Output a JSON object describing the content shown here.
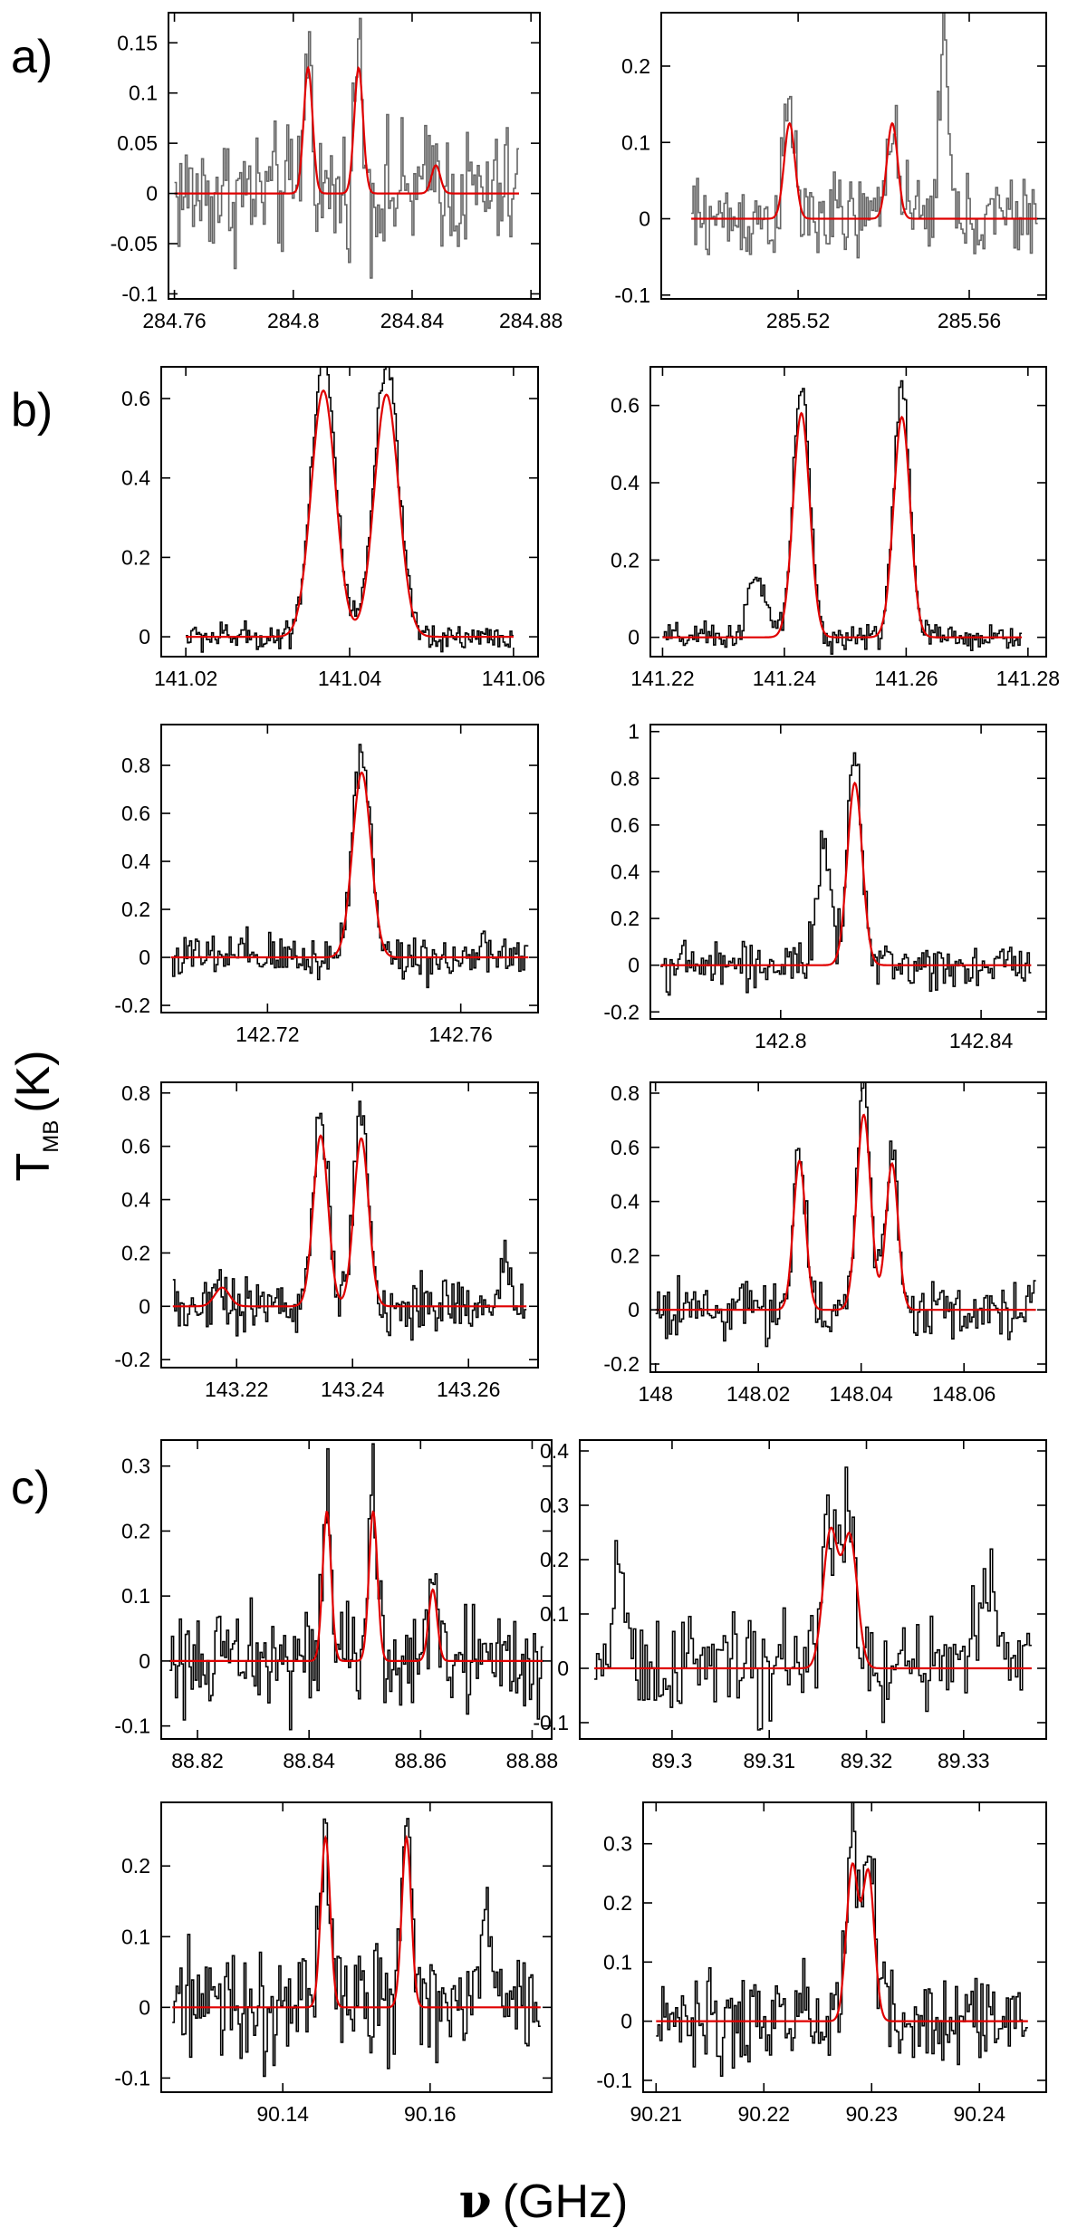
{
  "figure": {
    "panel_letters": [
      "a)",
      "b)",
      "c)"
    ],
    "ylabel_main": "T",
    "ylabel_sub": "MB",
    "ylabel_unit": "(K)",
    "xlabel_symbol": "ν",
    "xlabel_unit": "(GHz)"
  },
  "chart_data": [
    {
      "type": "line",
      "group": "a",
      "position": "left",
      "xlim": [
        284.758,
        284.883
      ],
      "ylim": [
        -0.105,
        0.18
      ],
      "xticks": [
        284.76,
        284.8,
        284.84,
        284.88
      ],
      "xtick_labels": [
        "284.76",
        "284.8",
        "284.84",
        "284.88"
      ],
      "yticks": [
        -0.1,
        -0.05,
        0,
        0.05,
        0.1,
        0.15
      ],
      "ytick_labels": [
        "-0.1",
        "-0.05",
        "0",
        "0.05",
        "0.1",
        "0.15"
      ],
      "data_xrange": [
        284.76,
        284.876
      ],
      "noise": 0.032,
      "observed_color": "gray",
      "fit_components": [
        {
          "center": 284.805,
          "amplitude": 0.125,
          "fwhm": 0.0035
        },
        {
          "center": 284.822,
          "amplitude": 0.125,
          "fwhm": 0.0035
        },
        {
          "center": 284.848,
          "amplitude": 0.028,
          "fwhm": 0.0035
        }
      ],
      "extra_observed": [],
      "series": [
        {
          "name": "observed"
        },
        {
          "name": "fit"
        }
      ]
    },
    {
      "type": "line",
      "group": "a",
      "position": "right",
      "xlim": [
        285.488,
        285.578
      ],
      "ylim": [
        -0.105,
        0.27
      ],
      "xticks": [
        285.52,
        285.56
      ],
      "xtick_labels": [
        "285.52",
        "285.56"
      ],
      "yticks": [
        -0.1,
        0,
        0.1,
        0.2
      ],
      "ytick_labels": [
        "-0.1",
        "0",
        "0.1",
        "0.2"
      ],
      "data_xrange": [
        285.495,
        285.576
      ],
      "noise": 0.028,
      "observed_color": "gray",
      "fit_components": [
        {
          "center": 285.518,
          "amplitude": 0.125,
          "fwhm": 0.003
        },
        {
          "center": 285.542,
          "amplitude": 0.125,
          "fwhm": 0.003
        }
      ],
      "extra_observed": [
        {
          "center": 285.554,
          "amplitude": 0.24,
          "fwhm": 0.0025
        }
      ],
      "series": [
        {
          "name": "observed"
        },
        {
          "name": "fit"
        }
      ]
    },
    {
      "type": "line",
      "group": "b",
      "position": "left",
      "xlim": [
        141.017,
        141.063
      ],
      "ylim": [
        -0.05,
        0.68
      ],
      "xticks": [
        141.02,
        141.04,
        141.06
      ],
      "xtick_labels": [
        "141.02",
        "141.04",
        "141.06"
      ],
      "yticks": [
        0,
        0.2,
        0.4,
        0.6
      ],
      "ytick_labels": [
        "0",
        "0.2",
        "0.4",
        "0.6"
      ],
      "data_xrange": [
        141.02,
        141.06
      ],
      "noise": 0.018,
      "observed_color": "black",
      "fit_components": [
        {
          "center": 141.0368,
          "amplitude": 0.62,
          "fwhm": 0.0035
        },
        {
          "center": 141.0445,
          "amplitude": 0.61,
          "fwhm": 0.0035
        }
      ],
      "extra_observed": [],
      "series": [
        {
          "name": "observed"
        },
        {
          "name": "fit"
        }
      ]
    },
    {
      "type": "line",
      "group": "b",
      "position": "right",
      "xlim": [
        141.218,
        141.283
      ],
      "ylim": [
        -0.05,
        0.7
      ],
      "xticks": [
        141.22,
        141.24,
        141.26,
        141.28
      ],
      "xtick_labels": [
        "141.22",
        "141.24",
        "141.26",
        "141.28"
      ],
      "yticks": [
        0,
        0.2,
        0.4,
        0.6
      ],
      "ytick_labels": [
        "0",
        "0.2",
        "0.4",
        "0.6"
      ],
      "data_xrange": [
        141.22,
        141.279
      ],
      "noise": 0.018,
      "observed_color": "black",
      "fit_components": [
        {
          "center": 141.2428,
          "amplitude": 0.58,
          "fwhm": 0.0032
        },
        {
          "center": 141.2593,
          "amplitude": 0.57,
          "fwhm": 0.0032
        }
      ],
      "extra_observed": [
        {
          "center": 141.2355,
          "amplitude": 0.15,
          "fwhm": 0.0035
        }
      ],
      "series": [
        {
          "name": "observed"
        },
        {
          "name": "fit"
        }
      ]
    },
    {
      "type": "line",
      "group": "b",
      "position": "left",
      "xlim": [
        142.698,
        142.776
      ],
      "ylim": [
        -0.23,
        0.97
      ],
      "xticks": [
        142.72,
        142.76
      ],
      "xtick_labels": [
        "142.72",
        "142.76"
      ],
      "yticks": [
        -0.2,
        0,
        0.2,
        0.4,
        0.6,
        0.8
      ],
      "ytick_labels": [
        "-0.2",
        "0",
        "0.2",
        "0.4",
        "0.6",
        "0.8"
      ],
      "data_xrange": [
        142.7,
        142.774
      ],
      "noise": 0.05,
      "observed_color": "black",
      "fit_components": [
        {
          "center": 142.7395,
          "amplitude": 0.77,
          "fwhm": 0.0045
        }
      ],
      "extra_observed": [],
      "series": [
        {
          "name": "observed"
        },
        {
          "name": "fit"
        }
      ]
    },
    {
      "type": "line",
      "group": "b",
      "position": "right",
      "xlim": [
        142.774,
        142.853
      ],
      "ylim": [
        -0.23,
        1.03
      ],
      "xticks": [
        142.8,
        142.84
      ],
      "xtick_labels": [
        "142.8",
        "142.84"
      ],
      "yticks": [
        -0.2,
        0,
        0.2,
        0.4,
        0.6,
        0.8,
        1
      ],
      "ytick_labels": [
        "-0.2",
        "0",
        "0.2",
        "0.4",
        "0.6",
        "0.8",
        "1"
      ],
      "data_xrange": [
        142.776,
        142.85
      ],
      "noise": 0.05,
      "observed_color": "black",
      "fit_components": [
        {
          "center": 142.8148,
          "amplitude": 0.78,
          "fwhm": 0.0035
        }
      ],
      "extra_observed": [
        {
          "center": 142.8085,
          "amplitude": 0.52,
          "fwhm": 0.003
        }
      ],
      "series": [
        {
          "name": "observed"
        },
        {
          "name": "fit"
        }
      ]
    },
    {
      "type": "line",
      "group": "b",
      "position": "left",
      "xlim": [
        143.207,
        143.272
      ],
      "ylim": [
        -0.23,
        0.84
      ],
      "xticks": [
        143.22,
        143.24,
        143.26
      ],
      "xtick_labels": [
        "143.22",
        "143.24",
        "143.26"
      ],
      "yticks": [
        -0.2,
        0,
        0.2,
        0.4,
        0.6,
        0.8
      ],
      "ytick_labels": [
        "-0.2",
        "0",
        "0.2",
        "0.4",
        "0.6",
        "0.8"
      ],
      "data_xrange": [
        143.209,
        143.27
      ],
      "noise": 0.055,
      "observed_color": "black",
      "fit_components": [
        {
          "center": 143.2175,
          "amplitude": 0.07,
          "fwhm": 0.003
        },
        {
          "center": 143.2345,
          "amplitude": 0.64,
          "fwhm": 0.003
        },
        {
          "center": 143.2415,
          "amplitude": 0.63,
          "fwhm": 0.003
        }
      ],
      "extra_observed": [
        {
          "center": 143.2665,
          "amplitude": 0.18,
          "fwhm": 0.0025
        }
      ],
      "series": [
        {
          "name": "observed"
        },
        {
          "name": "fit"
        }
      ]
    },
    {
      "type": "line",
      "group": "b",
      "position": "right",
      "xlim": [
        147.999,
        148.076
      ],
      "ylim": [
        -0.23,
        0.84
      ],
      "xticks": [
        148.0,
        148.02,
        148.04,
        148.06
      ],
      "xtick_labels": [
        "148",
        "148.02",
        "148.04",
        "148.06"
      ],
      "yticks": [
        -0.2,
        0,
        0.2,
        0.4,
        0.6,
        0.8
      ],
      "ytick_labels": [
        "-0.2",
        "0",
        "0.2",
        "0.4",
        "0.6",
        "0.8"
      ],
      "data_xrange": [
        148.0,
        148.074
      ],
      "noise": 0.05,
      "observed_color": "black",
      "fit_components": [
        {
          "center": 148.028,
          "amplitude": 0.55,
          "fwhm": 0.0028
        },
        {
          "center": 148.0405,
          "amplitude": 0.72,
          "fwhm": 0.0032
        },
        {
          "center": 148.046,
          "amplitude": 0.54,
          "fwhm": 0.0028
        }
      ],
      "extra_observed": [],
      "series": [
        {
          "name": "observed"
        },
        {
          "name": "fit"
        }
      ]
    },
    {
      "type": "line",
      "group": "c",
      "position": "left",
      "xlim": [
        88.8135,
        88.8835
      ],
      "ylim": [
        -0.12,
        0.34
      ],
      "xticks": [
        88.82,
        88.84,
        88.86,
        88.88
      ],
      "xtick_labels": [
        "88.82",
        "88.84",
        "88.86",
        "88.88"
      ],
      "yticks": [
        -0.1,
        0,
        0.1,
        0.2,
        0.3
      ],
      "ytick_labels": [
        "-0.1",
        "0",
        "0.1",
        "0.2",
        "0.3"
      ],
      "data_xrange": [
        88.815,
        88.882
      ],
      "noise": 0.04,
      "observed_color": "black",
      "fit_components": [
        {
          "center": 88.8432,
          "amplitude": 0.23,
          "fwhm": 0.0018
        },
        {
          "center": 88.8515,
          "amplitude": 0.23,
          "fwhm": 0.0018
        },
        {
          "center": 88.8622,
          "amplitude": 0.11,
          "fwhm": 0.0018
        }
      ],
      "extra_observed": [],
      "series": [
        {
          "name": "observed"
        },
        {
          "name": "fit"
        }
      ]
    },
    {
      "type": "line",
      "group": "c",
      "position": "right",
      "xlim": [
        89.2905,
        89.3385
      ],
      "ylim": [
        -0.13,
        0.42
      ],
      "xticks": [
        89.3,
        89.31,
        89.32,
        89.33
      ],
      "xtick_labels": [
        "89.3",
        "89.31",
        "89.32",
        "89.33"
      ],
      "yticks": [
        -0.1,
        0,
        0.1,
        0.2,
        0.3,
        0.4
      ],
      "ytick_labels": [
        "-0.1",
        "0",
        "0.1",
        "0.2",
        "0.3",
        "0.4"
      ],
      "data_xrange": [
        89.292,
        89.337
      ],
      "noise": 0.045,
      "observed_color": "black",
      "fit_components": [
        {
          "center": 89.3163,
          "amplitude": 0.25,
          "fwhm": 0.0018
        },
        {
          "center": 89.3183,
          "amplitude": 0.24,
          "fwhm": 0.0018
        }
      ],
      "extra_observed": [
        {
          "center": 89.2945,
          "amplitude": 0.22,
          "fwhm": 0.0015
        },
        {
          "center": 89.3325,
          "amplitude": 0.15,
          "fwhm": 0.0025
        }
      ],
      "series": [
        {
          "name": "observed"
        },
        {
          "name": "fit"
        }
      ]
    },
    {
      "type": "line",
      "group": "c",
      "position": "left",
      "xlim": [
        90.1235,
        90.1765
      ],
      "ylim": [
        -0.12,
        0.29
      ],
      "xticks": [
        90.14,
        90.16
      ],
      "xtick_labels": [
        "90.14",
        "90.16"
      ],
      "yticks": [
        -0.1,
        0,
        0.1,
        0.2
      ],
      "ytick_labels": [
        "-0.1",
        "0",
        "0.1",
        "0.2"
      ],
      "data_xrange": [
        90.125,
        90.175
      ],
      "noise": 0.04,
      "observed_color": "black",
      "fit_components": [
        {
          "center": 90.1458,
          "amplitude": 0.24,
          "fwhm": 0.0015
        },
        {
          "center": 90.1568,
          "amplitude": 0.24,
          "fwhm": 0.0015
        }
      ],
      "extra_observed": [
        {
          "center": 90.1675,
          "amplitude": 0.1,
          "fwhm": 0.002
        }
      ],
      "series": [
        {
          "name": "observed"
        },
        {
          "name": "fit"
        }
      ]
    },
    {
      "type": "line",
      "group": "c",
      "position": "right",
      "xlim": [
        90.2088,
        90.2462
      ],
      "ylim": [
        -0.12,
        0.37
      ],
      "xticks": [
        90.21,
        90.22,
        90.23,
        90.24
      ],
      "xtick_labels": [
        "90.21",
        "90.22",
        "90.23",
        "90.24"
      ],
      "yticks": [
        -0.1,
        0,
        0.1,
        0.2,
        0.3
      ],
      "ytick_labels": [
        "-0.1",
        "0",
        "0.1",
        "0.2",
        "0.3"
      ],
      "data_xrange": [
        90.21,
        90.2445
      ],
      "noise": 0.04,
      "observed_color": "black",
      "fit_components": [
        {
          "center": 90.2282,
          "amplitude": 0.26,
          "fwhm": 0.0013
        },
        {
          "center": 90.2297,
          "amplitude": 0.25,
          "fwhm": 0.0013
        }
      ],
      "extra_observed": [],
      "series": [
        {
          "name": "observed"
        },
        {
          "name": "fit"
        }
      ]
    }
  ]
}
